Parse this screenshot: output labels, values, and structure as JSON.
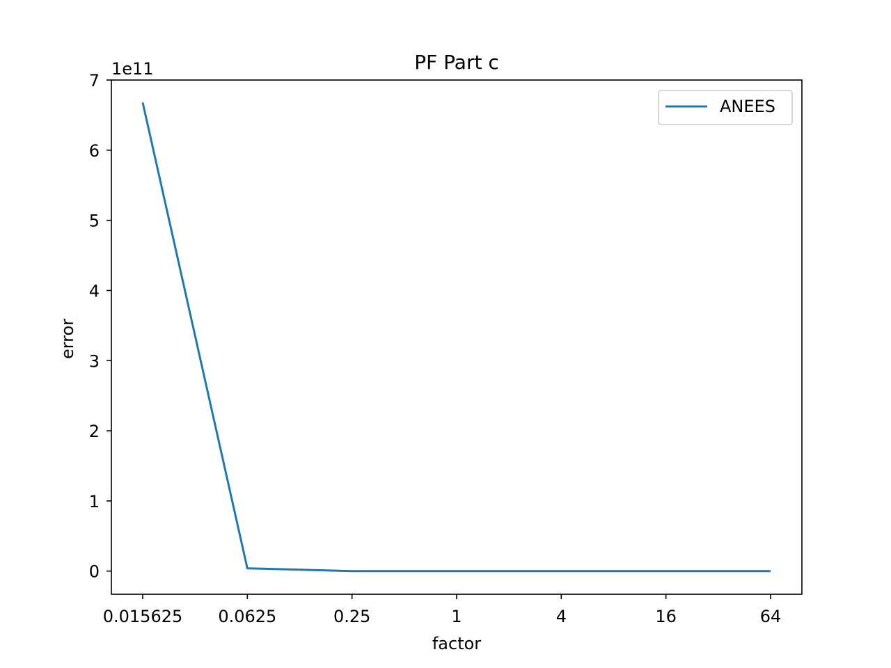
{
  "chart_data": {
    "type": "line",
    "title": "PF Part c",
    "xlabel": "factor",
    "ylabel": "error",
    "y_offset_label": "1e11",
    "x_scale": "log2",
    "categories": [
      "0.015625",
      "0.0625",
      "0.25",
      "1",
      "4",
      "16",
      "64"
    ],
    "x": [
      0.015625,
      0.0625,
      0.25,
      1,
      4,
      16,
      64
    ],
    "y_ticks": [
      0,
      1,
      2,
      3,
      4,
      5,
      6,
      7
    ],
    "ylim": [
      -0.33,
      7.0
    ],
    "y_units_multiplier": 100000000000,
    "series": [
      {
        "name": "ANEES",
        "color": "#1f77b4",
        "values": [
          6.68,
          0.04,
          0.0,
          0.0,
          0.0,
          0.0,
          0.0
        ]
      }
    ],
    "legend_position": "top-right",
    "grid": false
  }
}
